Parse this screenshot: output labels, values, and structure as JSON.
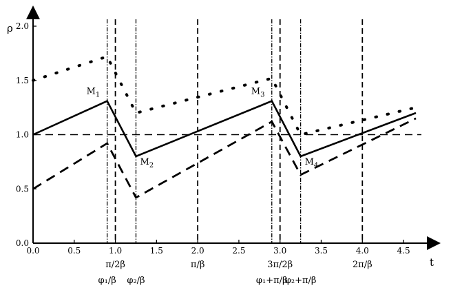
{
  "chart_data": {
    "type": "line",
    "xlabel": "t",
    "ylabel": "ρ",
    "xlim": [
      0.0,
      4.65
    ],
    "ylim": [
      0.0,
      2.0
    ],
    "x_ticks": [
      "0.0",
      "0.5",
      "1.0",
      "1.5",
      "2.0",
      "2.5",
      "3.0",
      "3.5",
      "4.0",
      "4.5"
    ],
    "x_tick_values": [
      0.0,
      0.5,
      1.0,
      1.5,
      2.0,
      2.5,
      3.0,
      3.5,
      4.0,
      4.5
    ],
    "y_ticks": [
      "0.0",
      "0.5",
      "1.0",
      "1.5",
      "2.0"
    ],
    "y_tick_values": [
      0.0,
      0.5,
      1.0,
      1.5,
      2.0
    ],
    "reference_line": {
      "y": 1.0,
      "style": "dashed"
    },
    "vertical_lines": [
      {
        "x": 0.9,
        "style": "dotdash"
      },
      {
        "x": 1.0,
        "style": "dashed"
      },
      {
        "x": 1.25,
        "style": "dotdash"
      },
      {
        "x": 2.0,
        "style": "dashed"
      },
      {
        "x": 2.9,
        "style": "dotdash"
      },
      {
        "x": 3.0,
        "style": "dashed"
      },
      {
        "x": 3.25,
        "style": "dotdash"
      },
      {
        "x": 4.0,
        "style": "dashed"
      }
    ],
    "series": [
      {
        "style": "solid",
        "x": [
          0.0,
          0.9,
          1.25,
          2.9,
          3.25,
          4.65
        ],
        "y": [
          1.0,
          1.31,
          0.8,
          1.31,
          0.8,
          1.2
        ]
      },
      {
        "style": "dotted",
        "x": [
          0.0,
          0.9,
          1.25,
          2.9,
          3.25,
          4.65
        ],
        "y": [
          1.5,
          1.72,
          1.2,
          1.52,
          1.0,
          1.25
        ]
      },
      {
        "style": "dashed",
        "x": [
          0.0,
          0.9,
          1.25,
          2.9,
          3.25,
          4.65
        ],
        "y": [
          0.5,
          0.92,
          0.42,
          1.12,
          0.63,
          1.15
        ]
      }
    ],
    "point_labels": [
      {
        "text": "M",
        "sub": "1",
        "x": 0.9,
        "y": 1.31
      },
      {
        "text": "M",
        "sub": "2",
        "x": 1.25,
        "y": 0.8
      },
      {
        "text": "M",
        "sub": "3",
        "x": 2.9,
        "y": 1.31
      },
      {
        "text": "M",
        "sub": "4",
        "x": 3.25,
        "y": 0.8
      }
    ],
    "annotations_row1": [
      {
        "text": "π/2β",
        "x": 1.0
      },
      {
        "text": "π/β",
        "x": 2.0
      },
      {
        "text": "3π/2β",
        "x": 3.0
      },
      {
        "text": "2π/β",
        "x": 4.0
      }
    ],
    "annotations_row2": [
      {
        "text": "φ₁/β",
        "x": 0.9
      },
      {
        "text": "φ₂/β",
        "x": 1.25
      },
      {
        "text": "φ₁+π/β",
        "x": 2.9
      },
      {
        "text": "φ₂+π/β",
        "x": 3.25
      }
    ]
  }
}
